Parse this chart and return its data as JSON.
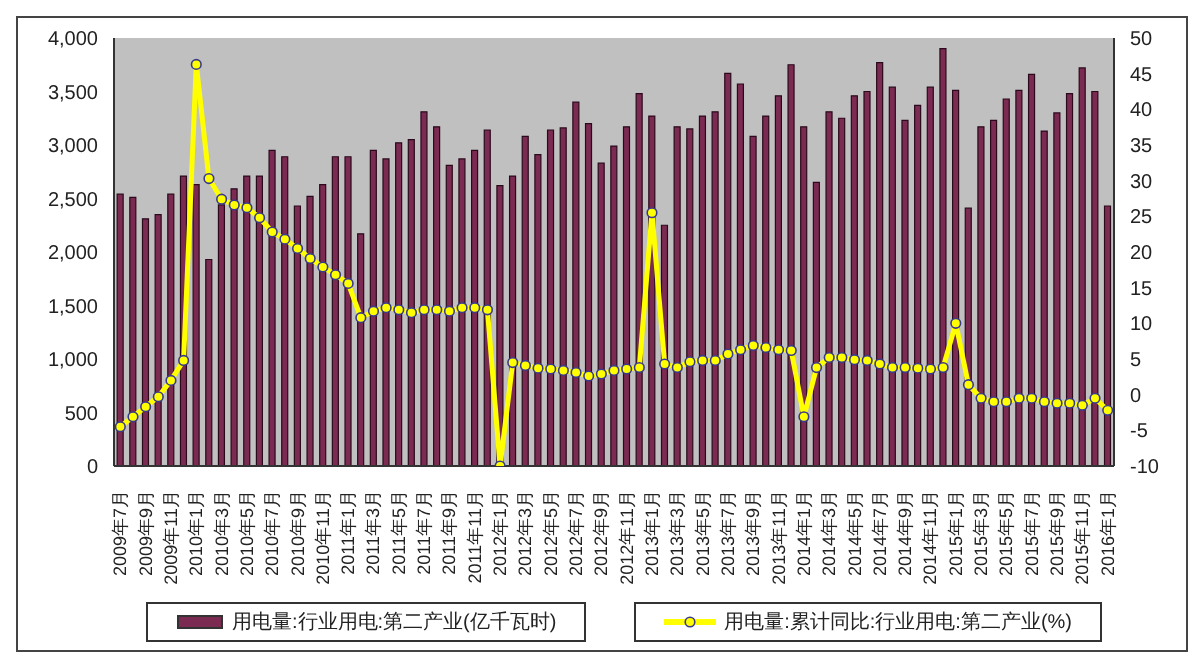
{
  "chart_data": {
    "type": "bar",
    "categories": [
      "2009年7月",
      null,
      "2009年9月",
      null,
      "2009年11月",
      null,
      "2010年1月",
      null,
      "2010年3月",
      null,
      "2010年5月",
      null,
      "2010年7月",
      null,
      "2010年9月",
      null,
      "2010年11月",
      null,
      "2011年1月",
      null,
      "2011年3月",
      null,
      "2011年5月",
      null,
      "2011年7月",
      null,
      "2011年9月",
      null,
      "2011年11月",
      null,
      "2012年1月",
      null,
      "2012年3月",
      null,
      "2012年5月",
      null,
      "2012年7月",
      null,
      "2012年9月",
      null,
      "2012年11月",
      null,
      "2013年1月",
      null,
      "2013年3月",
      null,
      "2013年5月",
      null,
      "2013年7月",
      null,
      "2013年9月",
      null,
      "2013年11月",
      null,
      "2014年1月",
      null,
      "2014年3月",
      null,
      "2014年5月",
      null,
      "2014年7月",
      null,
      "2014年9月",
      null,
      "2014年11月",
      null,
      "2015年1月",
      null,
      "2015年3月",
      null,
      "2015年5月",
      null,
      "2015年7月",
      null,
      "2015年9月",
      null,
      "2015年11月",
      null,
      "2016年1月"
    ],
    "series": [
      {
        "name": "用电量:行业用电:第二产业(亿千瓦时)",
        "color": "#7b2a52",
        "values": [
          2540,
          2510,
          2310,
          2350,
          2540,
          2710,
          2630,
          1930,
          2440,
          2590,
          2710,
          2710,
          2950,
          2890,
          2430,
          2520,
          2630,
          2890,
          2890,
          2170,
          2950,
          2870,
          3020,
          3050,
          3310,
          3170,
          2810,
          2870,
          2950,
          3140,
          2620,
          2710,
          3080,
          2910,
          3140,
          3160,
          3400,
          3200,
          2830,
          2990,
          3170,
          3480,
          3270,
          2250,
          3170,
          3150,
          3270,
          3310,
          3670,
          3570,
          3080,
          3270,
          3460,
          3750,
          3170,
          2650,
          3310,
          3250,
          3460,
          3500,
          3770,
          3540,
          3230,
          3370,
          3540,
          3900,
          3510,
          2410,
          3170,
          3230,
          3430,
          3510,
          3660,
          3130,
          3300,
          3480,
          3720,
          3500,
          2430
        ]
      },
      {
        "name": "用电量:累计同比:行业用电:第二产业(%)",
        "type": "line",
        "axis": "y2",
        "color": "#ffff00",
        "values": [
          -4.5,
          -3.1,
          -1.7,
          -0.3,
          2.0,
          4.8,
          46.3,
          30.3,
          27.4,
          26.6,
          26.2,
          24.8,
          22.8,
          21.8,
          20.5,
          19.1,
          17.9,
          16.8,
          15.6,
          10.8,
          11.7,
          12.2,
          11.9,
          11.5,
          11.9,
          11.9,
          11.7,
          12.2,
          12.2,
          11.9,
          -10,
          4.5,
          4.1,
          3.7,
          3.6,
          3.4,
          3.1,
          2.6,
          2.9,
          3.4,
          3.6,
          3.8,
          25.5,
          4.3,
          3.8,
          4.6,
          4.8,
          4.8,
          5.7,
          6.3,
          6.9,
          6.6,
          6.3,
          6.2,
          -3.1,
          3.8,
          5.2,
          5.2,
          4.9,
          4.8,
          4.3,
          3.8,
          3.8,
          3.7,
          3.6,
          3.8,
          10.0,
          1.4,
          -0.5,
          -1.0,
          -1.0,
          -0.5,
          -0.5,
          -1.0,
          -1.2,
          -1.2,
          -1.5,
          -0.5,
          -2.2
        ]
      }
    ],
    "ylim": [
      0,
      4000
    ],
    "yticks": [
      0,
      500,
      {
        "value": 1000,
        "label": "1,000"
      },
      {
        "value": 1500,
        "label": "1,500"
      },
      {
        "value": 2000,
        "label": "2,000"
      },
      {
        "value": 2500,
        "label": "2,500"
      },
      {
        "value": 3000,
        "label": "3,000"
      },
      {
        "value": 3500,
        "label": "3,500"
      },
      {
        "value": 4000,
        "label": "4,000"
      }
    ],
    "y2lim": [
      -10,
      50
    ],
    "y2ticks": [
      -10,
      -5,
      0,
      5,
      10,
      15,
      20,
      25,
      30,
      35,
      40,
      45,
      50
    ],
    "marker": "circle",
    "legend": "bottom",
    "grid": false
  }
}
